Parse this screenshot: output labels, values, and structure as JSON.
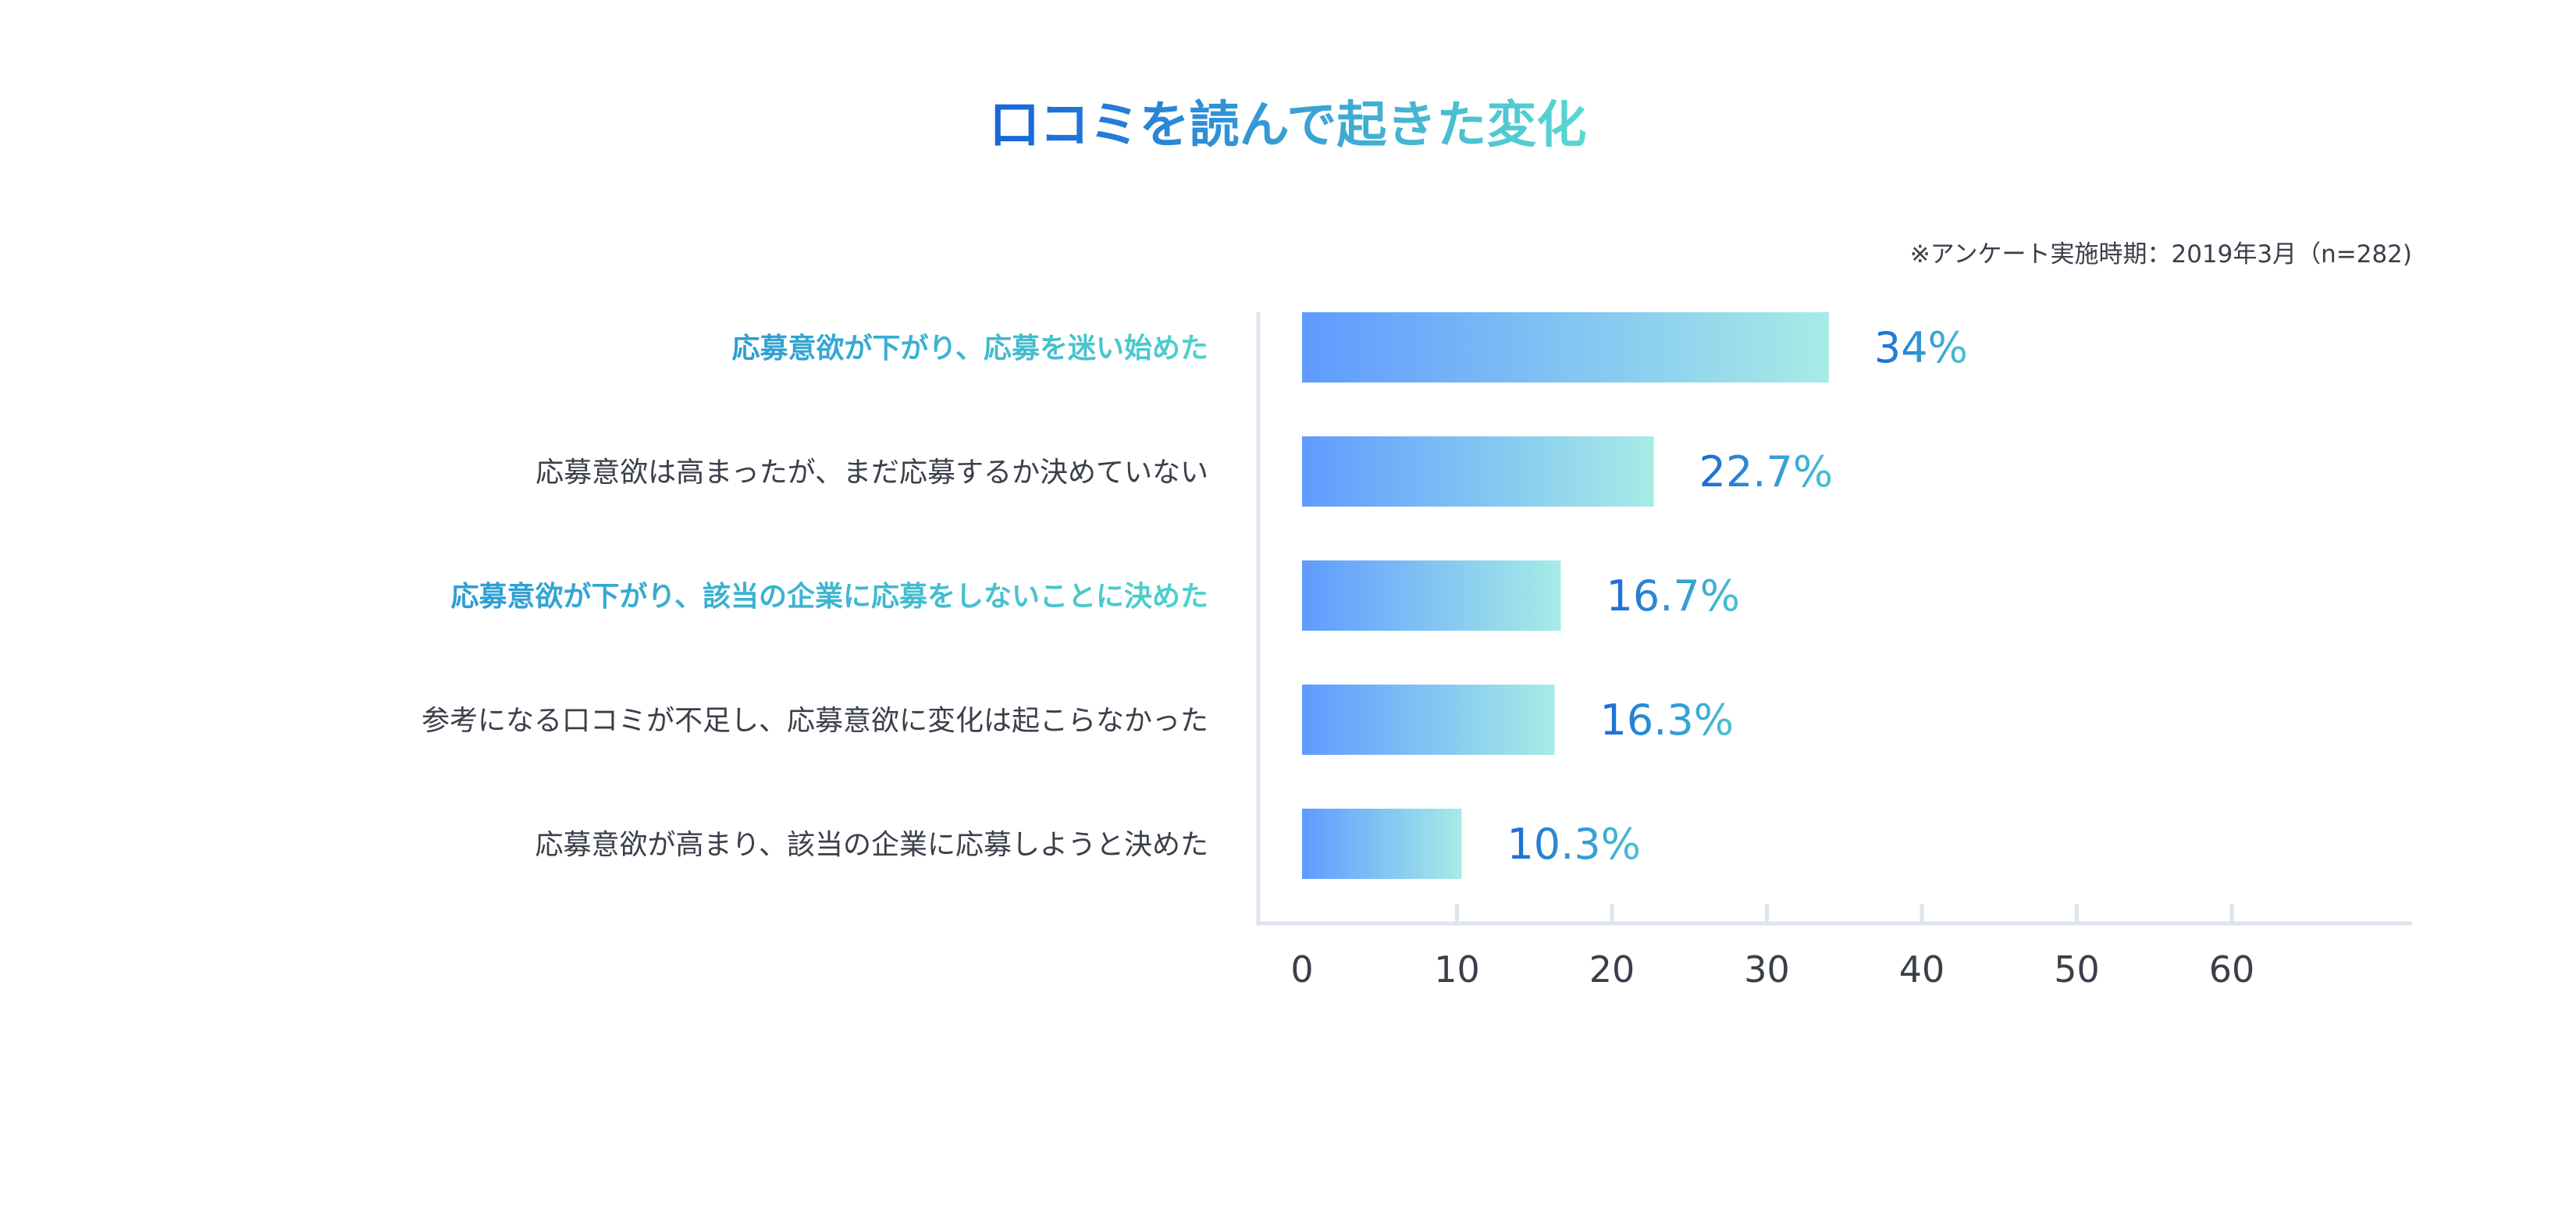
{
  "chart_data": {
    "type": "bar",
    "orientation": "horizontal",
    "title": "口コミを読んで起きた変化",
    "note": "※アンケート実施時期：2019年3月（n=282)",
    "categories": [
      "応募意欲が下がり、応募を迷い始めた",
      "応募意欲は高まったが、まだ応募するか決めていない",
      "応募意欲が下がり、該当の企業に応募をしないことに決めた",
      "参考になる口コミが不足し、応募意欲に変化は起こらなかった",
      "応募意欲が高まり、該当の企業に応募しようと決めた"
    ],
    "highlighted_categories": [
      0,
      2
    ],
    "values": [
      34,
      22.7,
      16.7,
      16.3,
      10.3
    ],
    "value_labels": [
      "34%",
      "22.7%",
      "16.7%",
      "16.3%",
      "10.3%"
    ],
    "xticks": [
      0,
      10,
      20,
      30,
      40,
      50,
      60
    ],
    "xlim": [
      0,
      70
    ],
    "xlabel": "",
    "ylabel": "",
    "grid": false,
    "legend": "none"
  },
  "colors": {
    "title_start": "#1565d8",
    "title_end": "#5ad8d0",
    "bar_start": "#5f9bff",
    "bar_end": "#a6ece6",
    "value_start": "#1a6ad6",
    "value_end": "#47c3d2",
    "axis": "#dde4ee",
    "text": "#3a3f4a",
    "highlight_a": "#2f9dd3",
    "highlight_b": "#4fd0cc"
  }
}
